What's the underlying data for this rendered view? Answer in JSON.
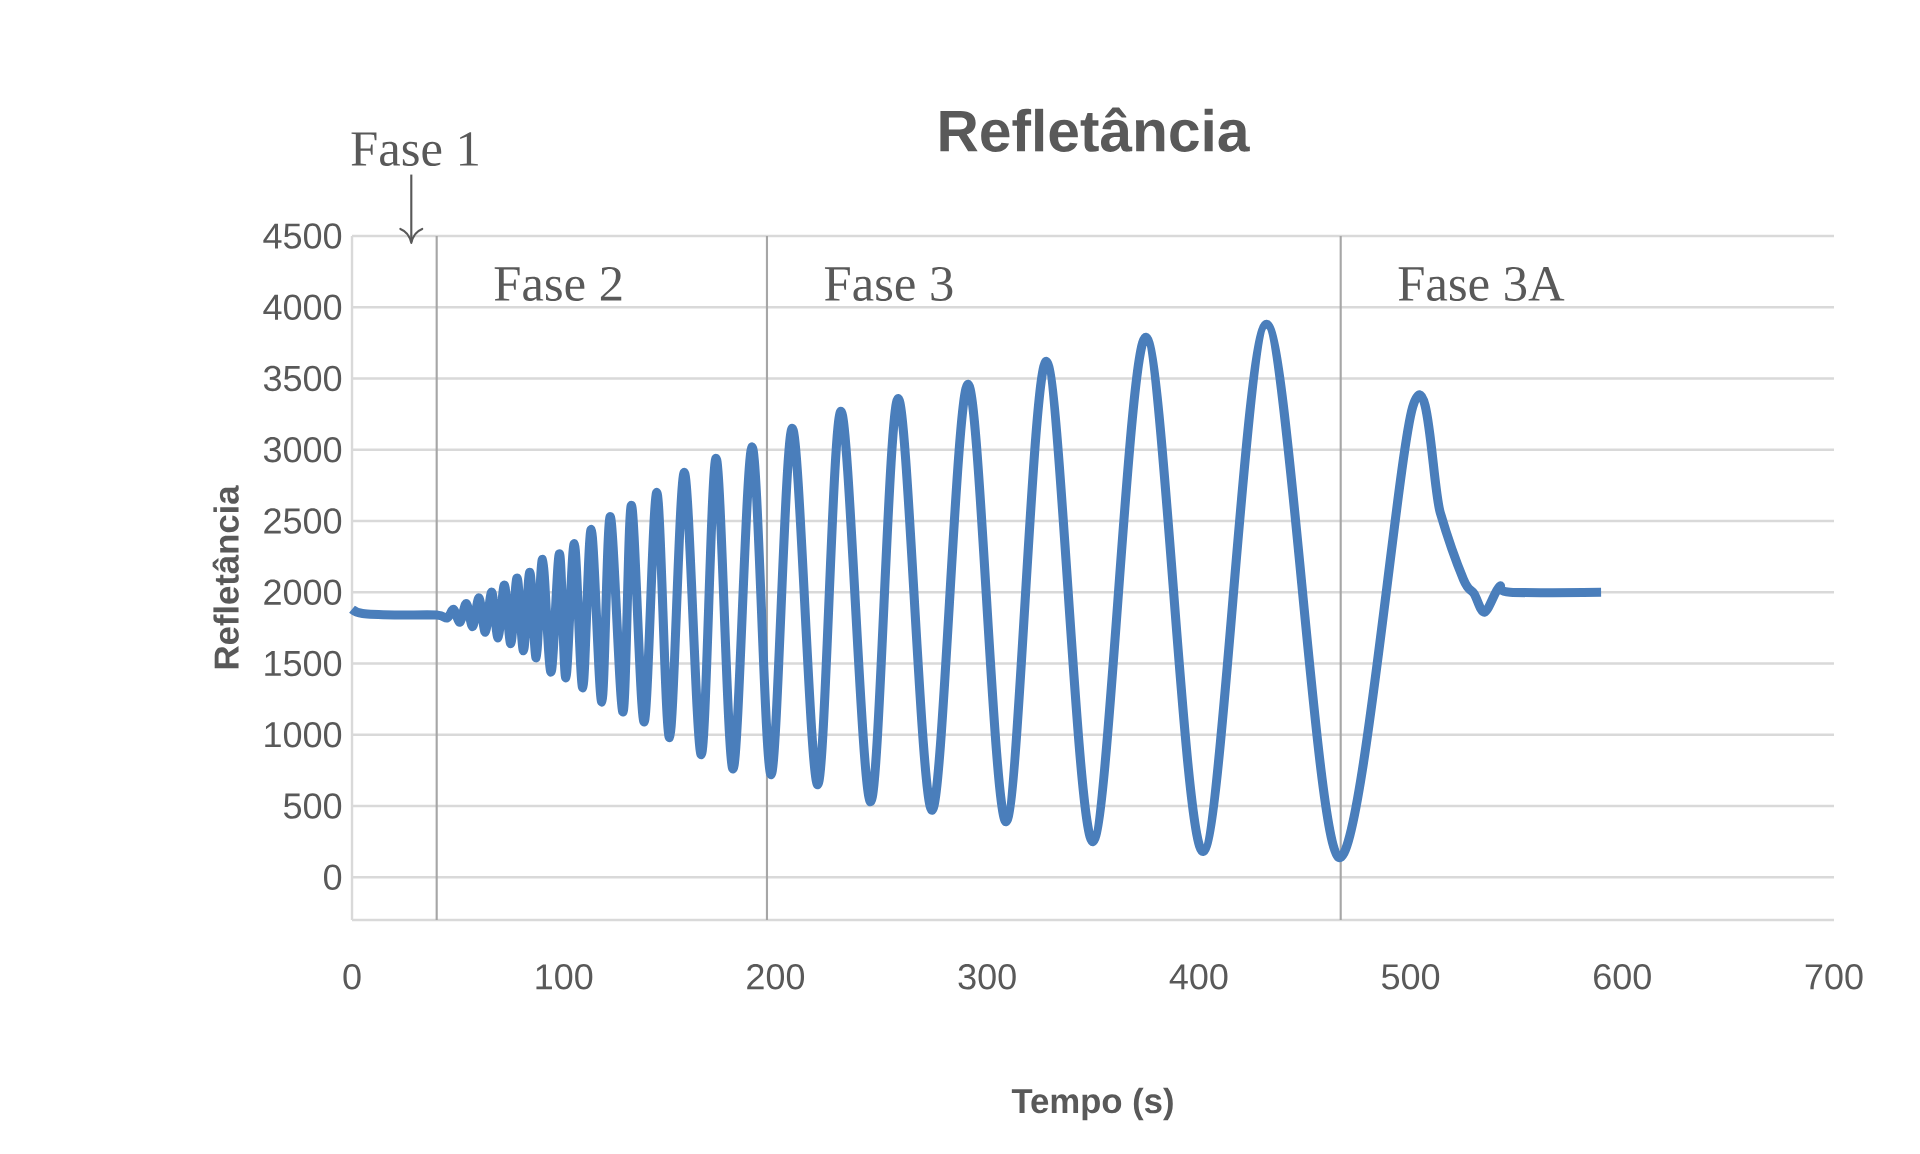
{
  "chart_data": {
    "type": "line",
    "title": "Refletância",
    "xlabel": "Tempo (s)",
    "ylabel": "Refletância",
    "x": [
      0,
      5,
      20,
      40,
      45,
      48,
      51,
      54,
      57,
      60,
      63,
      66,
      69,
      72,
      75,
      78,
      81,
      84,
      87,
      90,
      94,
      98,
      101,
      105,
      109,
      113,
      118,
      122,
      128,
      132,
      138,
      144,
      150,
      157,
      165,
      172,
      180,
      189,
      198,
      208,
      220,
      231,
      245,
      258,
      274,
      291,
      309,
      328,
      350,
      375,
      402,
      432,
      466,
      501,
      514,
      525,
      530,
      535,
      542,
      547,
      590
    ],
    "series": [
      {
        "color": "#4a7ebb",
        "values": [
          1880,
          1850,
          1840,
          1840,
          1820,
          1880,
          1790,
          1920,
          1760,
          1960,
          1720,
          2000,
          1680,
          2050,
          1640,
          2100,
          1590,
          2140,
          1540,
          2230,
          1440,
          2270,
          1400,
          2340,
          1330,
          2440,
          1230,
          2530,
          1160,
          2610,
          1090,
          2700,
          980,
          2840,
          860,
          2940,
          760,
          3020,
          720,
          3150,
          650,
          3270,
          530,
          3360,
          470,
          3460,
          390,
          3620,
          250,
          3790,
          180,
          3880,
          140,
          3300,
          2560,
          2090,
          1990,
          1860,
          2040,
          2000,
          2000
        ]
      }
    ],
    "xlim": [
      0,
      700
    ],
    "ylim": [
      -300,
      4500
    ],
    "xticks": [
      0,
      100,
      200,
      300,
      400,
      500,
      600,
      700
    ],
    "yticks": [
      0,
      500,
      1000,
      1500,
      2000,
      2500,
      3000,
      3500,
      4000,
      4500
    ],
    "grid": "y",
    "marker": "none",
    "line_style": "solid",
    "ref_lines": [
      {
        "axis": "x",
        "value": 40,
        "color": "#a6a6a6"
      },
      {
        "axis": "x",
        "value": 196,
        "color": "#a6a6a6"
      },
      {
        "axis": "x",
        "value": 467,
        "color": "#a6a6a6"
      }
    ],
    "annotations": [
      "Fase 1",
      "Fase 2",
      "Fase 3",
      "Fase 3A"
    ]
  }
}
